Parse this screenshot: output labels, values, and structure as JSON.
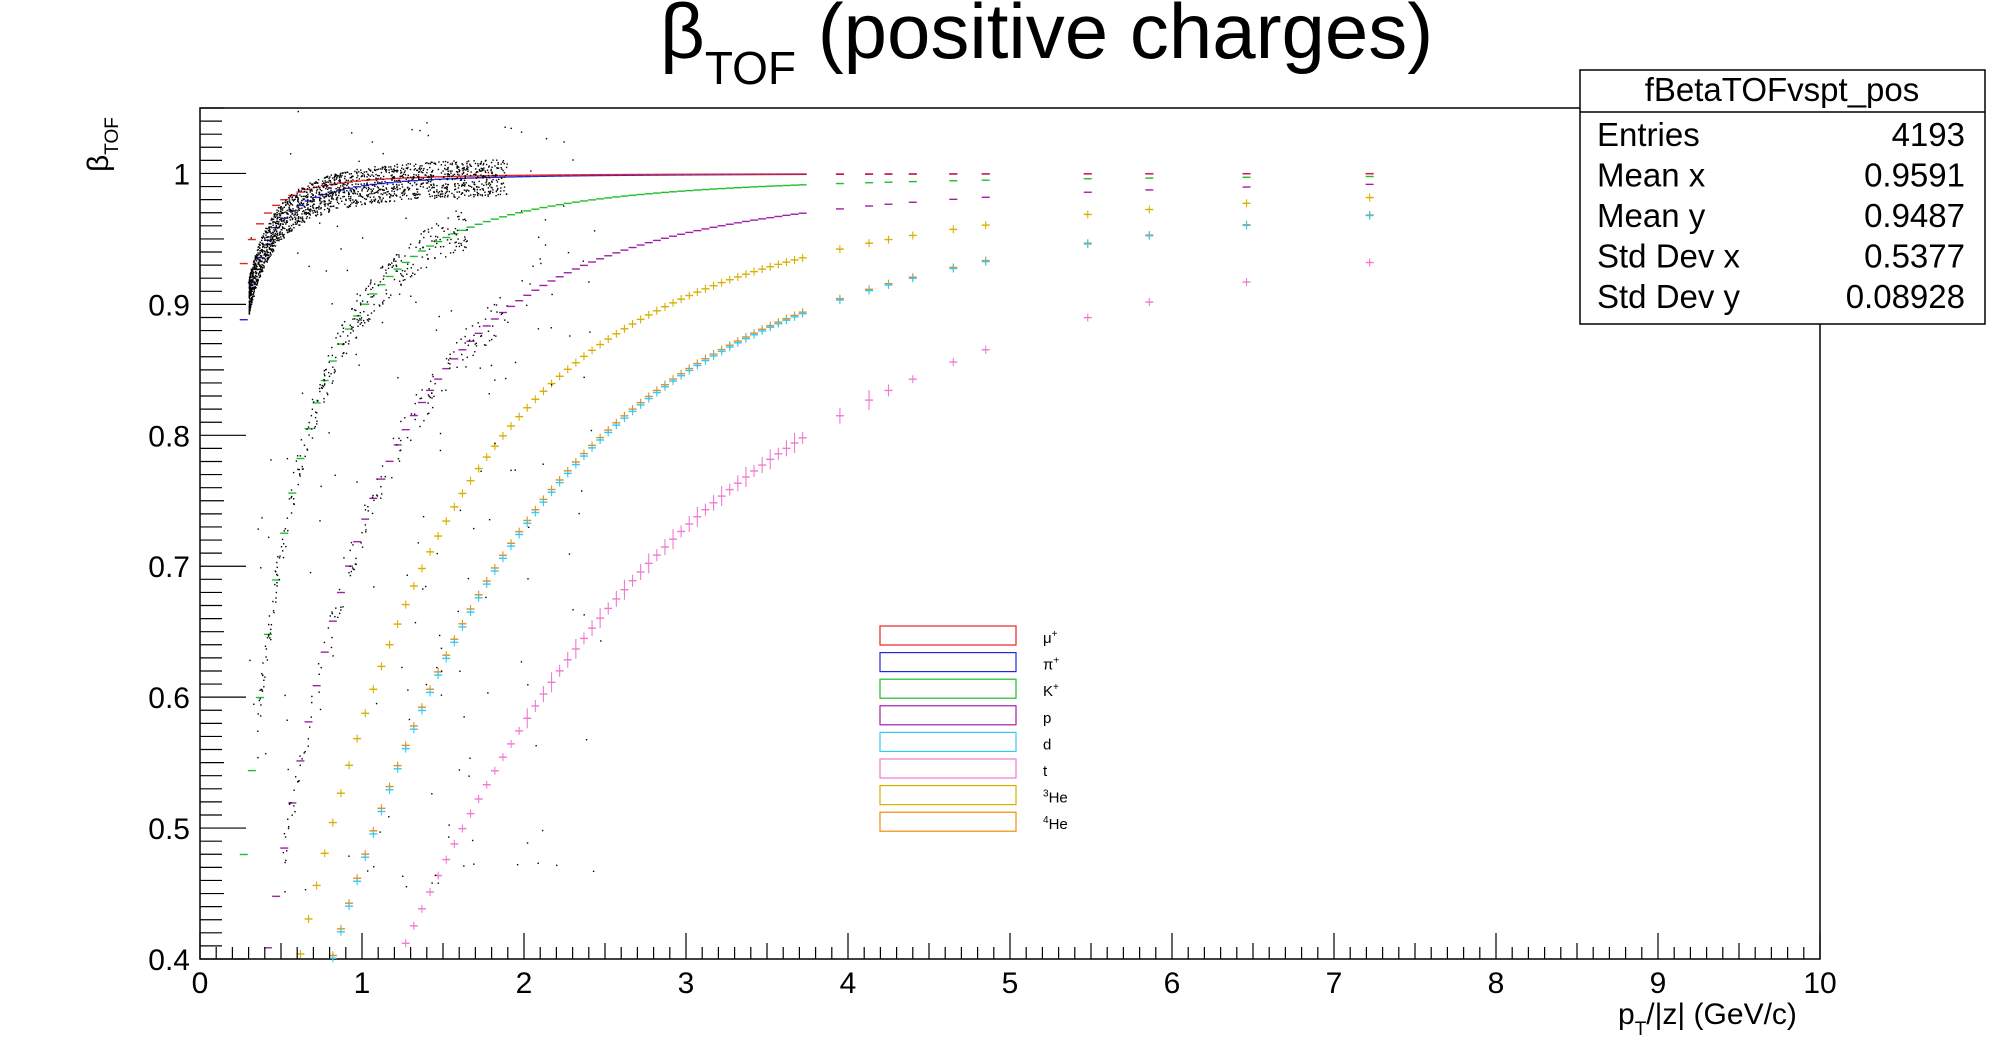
{
  "chart_data": {
    "type": "scatter",
    "title": {
      "main": "β",
      "sub": "TOF",
      "rest": " (positive charges)"
    },
    "xlabel": {
      "main": "p",
      "sub": "T",
      "rest": "/|z| (GeV/c)"
    },
    "ylabel": {
      "main": "β",
      "sub": "TOF"
    },
    "xlim": [
      0,
      10
    ],
    "ylim": [
      0.4,
      1.05
    ],
    "xticks": [
      "0",
      "1",
      "2",
      "3",
      "4",
      "5",
      "6",
      "7",
      "8",
      "9",
      "10"
    ],
    "yticks": [
      {
        "v": 0.4,
        "label": "0.4"
      },
      {
        "v": 0.5,
        "label": "0.5"
      },
      {
        "v": 0.6,
        "label": "0.6"
      },
      {
        "v": 0.7,
        "label": "0.7"
      },
      {
        "v": 0.8,
        "label": "0.8"
      },
      {
        "v": 0.9,
        "label": "0.9"
      },
      {
        "v": 1.0,
        "label": "1"
      }
    ],
    "grid": false,
    "legend_position": "center",
    "stats": {
      "name": "fBetaTOFvspt_pos",
      "rows": [
        {
          "label": "Entries",
          "value": "4193"
        },
        {
          "label": "Mean x",
          "value": "0.9591"
        },
        {
          "label": "Mean y",
          "value": "0.9487"
        },
        {
          "label": "Std Dev x",
          "value": "0.5377"
        },
        {
          "label": "Std Dev y",
          "value": "0.08928"
        }
      ]
    },
    "series": [
      {
        "name": "μ",
        "sup": "+",
        "mass": 0.1057,
        "color": "#e8202a"
      },
      {
        "name": "π",
        "sup": "+",
        "mass": 0.1396,
        "color": "#2424d8"
      },
      {
        "name": "K",
        "sup": "+",
        "mass": 0.4937,
        "color": "#1fbf2a"
      },
      {
        "name": "p",
        "sup": "",
        "mass": 0.9383,
        "color": "#a020a8"
      },
      {
        "name": "d",
        "sup": "",
        "mass": 1.8756,
        "color": "#38c8f0"
      },
      {
        "name": "t",
        "sup": "",
        "mass": 2.8089,
        "color": "#f07ad0"
      },
      {
        "name": "He",
        "pre": "3",
        "mass": 1.4044,
        "color": "#d8b000"
      },
      {
        "name": "He",
        "pre": "4",
        "mass": 1.8637,
        "color": "#f08a10"
      }
    ],
    "points_note_x": [
      0.27,
      0.32,
      0.37,
      0.42,
      0.47,
      0.52,
      0.57,
      0.62,
      0.67,
      0.72,
      0.77,
      0.82,
      0.87,
      0.92,
      0.97,
      1.02,
      1.07,
      1.12,
      1.17,
      1.22,
      1.27,
      1.32,
      1.37,
      1.42,
      1.47,
      1.52,
      1.57,
      1.62,
      1.67,
      1.72,
      1.77,
      1.82,
      1.87,
      1.92,
      1.97,
      2.02,
      2.07,
      2.12,
      2.17,
      2.22,
      2.27,
      2.32,
      2.37,
      2.42,
      2.47,
      2.52,
      2.57,
      2.62,
      2.67,
      2.72,
      2.77,
      2.82,
      2.87,
      2.92,
      2.97,
      3.02,
      3.07,
      3.12,
      3.17,
      3.22,
      3.27,
      3.32,
      3.37,
      3.42,
      3.47,
      3.52,
      3.57,
      3.62,
      3.67,
      3.72,
      3.95,
      4.13,
      4.25,
      4.4,
      4.65,
      4.85,
      5.48,
      5.86,
      6.46,
      7.22
    ]
  }
}
